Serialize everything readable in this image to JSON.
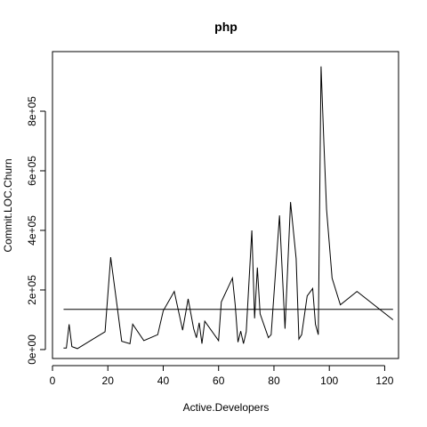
{
  "chart_data": {
    "type": "line",
    "title": "php",
    "xlabel": "Active.Developers",
    "ylabel": "Commit.LOC.Churn",
    "xlim": [
      0,
      125
    ],
    "ylim": [
      -30000,
      1000000
    ],
    "x_ticks": [
      0,
      20,
      40,
      60,
      80,
      100,
      120
    ],
    "x_tick_labels": [
      "0",
      "20",
      "40",
      "60",
      "80",
      "100",
      "120"
    ],
    "y_ticks": [
      0,
      200000,
      400000,
      600000,
      800000
    ],
    "y_tick_labels": [
      "0e+00",
      "2e+05",
      "4e+05",
      "6e+05",
      "8e+05"
    ],
    "grid": false,
    "reference_line": {
      "y": 135000,
      "x_from": 4,
      "x_to": 123
    },
    "series": [
      {
        "x": [
          4,
          5,
          6,
          7,
          9,
          19,
          21,
          23,
          25,
          28,
          29,
          33,
          38,
          40,
          44,
          47,
          49,
          51,
          52,
          53,
          54,
          55,
          60,
          61,
          65,
          66,
          67,
          68,
          69,
          70,
          72,
          73,
          74,
          75,
          78,
          79,
          82,
          84,
          86,
          88,
          89,
          90,
          92,
          94,
          95,
          96,
          97,
          98,
          99,
          101,
          104,
          110,
          123
        ],
        "values": [
          5000,
          5000,
          85000,
          10000,
          3000,
          60000,
          310000,
          170000,
          28000,
          20000,
          85000,
          30000,
          50000,
          130000,
          195000,
          65000,
          170000,
          70000,
          40000,
          90000,
          20000,
          95000,
          30000,
          160000,
          240000,
          150000,
          25000,
          62000,
          20000,
          60000,
          400000,
          105000,
          275000,
          120000,
          40000,
          50000,
          450000,
          70000,
          495000,
          305000,
          35000,
          50000,
          180000,
          205000,
          85000,
          50000,
          950000,
          700000,
          470000,
          240000,
          150000,
          195000,
          100000
        ]
      }
    ]
  }
}
